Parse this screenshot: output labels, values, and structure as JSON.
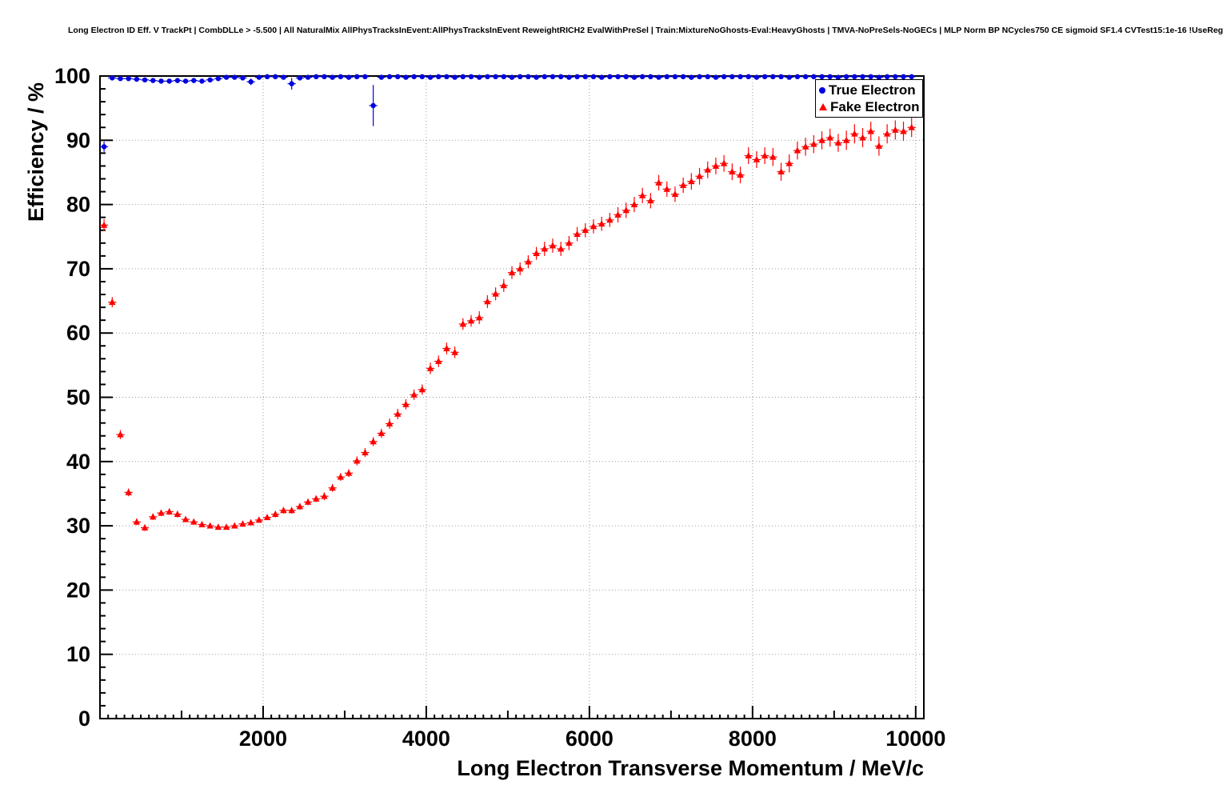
{
  "title": "Long Electron ID Eff. V TrackPt | CombDLLe > -5.500 | All NaturalMix AllPhysTracksInEvent:AllPhysTracksInEvent ReweightRICH2 EvalWithPreSel | Train:MixtureNoGhosts-Eval:HeavyGhosts | TMVA-NoPreSels-NoGECs | MLP Norm BP NCycles750 CE sigmoid SF1.4 CVTest15:1e-16 !UseReg",
  "axes": {
    "x_label": "Long Electron Transverse Momentum / MeV/c",
    "y_label": "Efficiency / %",
    "x_ticks": [
      2000,
      4000,
      6000,
      8000,
      10000
    ],
    "y_ticks": [
      0,
      10,
      20,
      30,
      40,
      50,
      60,
      70,
      80,
      90,
      100
    ]
  },
  "legend": {
    "items": [
      {
        "label": "True Electron",
        "marker": "circle",
        "color": "#0000e0"
      },
      {
        "label": "Fake Electron",
        "marker": "triangle",
        "color": "#ff0000"
      }
    ]
  },
  "colors": {
    "true_electron": "#0000e0",
    "fake_electron": "#ff0000",
    "grid": "#999999",
    "frame": "#000000",
    "background": "#ffffff"
  },
  "chart_data": {
    "type": "scatter",
    "title": "Long Electron ID Eff. V TrackPt",
    "xlabel": "Long Electron Transverse Momentum / MeV/c",
    "ylabel": "Efficiency / %",
    "xlim": [
      0,
      10100
    ],
    "ylim": [
      0,
      100
    ],
    "grid": true,
    "legend_position": "top-right",
    "series": [
      {
        "name": "True Electron",
        "marker": "circle",
        "color": "#0000e0",
        "points": [
          [
            50,
            89.0,
            0.8
          ],
          [
            150,
            99.7,
            0.2
          ],
          [
            250,
            99.6,
            0.2
          ],
          [
            350,
            99.6,
            0.2
          ],
          [
            450,
            99.5,
            0.2
          ],
          [
            550,
            99.4,
            0.2
          ],
          [
            650,
            99.3,
            0.2
          ],
          [
            750,
            99.2,
            0.2
          ],
          [
            850,
            99.2,
            0.2
          ],
          [
            950,
            99.3,
            0.2
          ],
          [
            1050,
            99.2,
            0.2
          ],
          [
            1150,
            99.3,
            0.2
          ],
          [
            1250,
            99.2,
            0.2
          ],
          [
            1350,
            99.4,
            0.2
          ],
          [
            1450,
            99.6,
            0.2
          ],
          [
            1550,
            99.8,
            0.1
          ],
          [
            1650,
            99.8,
            0.1
          ],
          [
            1750,
            99.7,
            0.2
          ],
          [
            1850,
            99.1,
            0.5
          ],
          [
            1950,
            99.8,
            0.1
          ],
          [
            2050,
            99.9,
            0.1
          ],
          [
            2150,
            99.9,
            0.1
          ],
          [
            2250,
            99.8,
            0.1
          ],
          [
            2350,
            98.8,
            0.9
          ],
          [
            2450,
            99.7,
            0.2
          ],
          [
            2550,
            99.8,
            0.1
          ],
          [
            2650,
            99.9,
            0.1
          ],
          [
            2750,
            99.9,
            0.1
          ],
          [
            2850,
            99.8,
            0.1
          ],
          [
            2950,
            99.9,
            0.1
          ],
          [
            3050,
            99.8,
            0.1
          ],
          [
            3150,
            99.9,
            0.1
          ],
          [
            3250,
            99.9,
            0.1
          ],
          [
            3350,
            95.4,
            3.2
          ],
          [
            3450,
            99.8,
            0.2
          ],
          [
            3550,
            99.9,
            0.1
          ],
          [
            3650,
            99.9,
            0.1
          ],
          [
            3750,
            99.8,
            0.1
          ],
          [
            3850,
            99.9,
            0.1
          ],
          [
            3950,
            99.9,
            0.1
          ],
          [
            4050,
            99.8,
            0.1
          ],
          [
            4150,
            99.9,
            0.1
          ],
          [
            4250,
            99.9,
            0.1
          ],
          [
            4350,
            99.8,
            0.1
          ],
          [
            4450,
            99.9,
            0.1
          ],
          [
            4550,
            99.9,
            0.1
          ],
          [
            4650,
            99.8,
            0.1
          ],
          [
            4750,
            99.9,
            0.1
          ],
          [
            4850,
            99.9,
            0.1
          ],
          [
            4950,
            99.9,
            0.1
          ],
          [
            5050,
            99.8,
            0.1
          ],
          [
            5150,
            99.9,
            0.1
          ],
          [
            5250,
            99.9,
            0.1
          ],
          [
            5350,
            99.8,
            0.1
          ],
          [
            5450,
            99.9,
            0.1
          ],
          [
            5550,
            99.9,
            0.1
          ],
          [
            5650,
            99.9,
            0.1
          ],
          [
            5750,
            99.8,
            0.1
          ],
          [
            5850,
            99.9,
            0.1
          ],
          [
            5950,
            99.9,
            0.1
          ],
          [
            6050,
            99.9,
            0.1
          ],
          [
            6150,
            99.8,
            0.1
          ],
          [
            6250,
            99.9,
            0.1
          ],
          [
            6350,
            99.9,
            0.1
          ],
          [
            6450,
            99.9,
            0.1
          ],
          [
            6550,
            99.8,
            0.1
          ],
          [
            6650,
            99.9,
            0.1
          ],
          [
            6750,
            99.9,
            0.1
          ],
          [
            6850,
            99.8,
            0.1
          ],
          [
            6950,
            99.9,
            0.1
          ],
          [
            7050,
            99.9,
            0.1
          ],
          [
            7150,
            99.9,
            0.1
          ],
          [
            7250,
            99.8,
            0.1
          ],
          [
            7350,
            99.9,
            0.1
          ],
          [
            7450,
            99.9,
            0.1
          ],
          [
            7550,
            99.8,
            0.1
          ],
          [
            7650,
            99.9,
            0.1
          ],
          [
            7750,
            99.9,
            0.1
          ],
          [
            7850,
            99.9,
            0.1
          ],
          [
            7950,
            99.9,
            0.1
          ],
          [
            8050,
            99.8,
            0.2
          ],
          [
            8150,
            99.9,
            0.1
          ],
          [
            8250,
            99.9,
            0.1
          ],
          [
            8350,
            99.9,
            0.2
          ],
          [
            8450,
            99.8,
            0.2
          ],
          [
            8550,
            99.9,
            0.1
          ],
          [
            8650,
            99.9,
            0.2
          ],
          [
            8750,
            99.9,
            0.2
          ],
          [
            8850,
            99.9,
            0.2
          ],
          [
            8950,
            99.9,
            0.2
          ],
          [
            9050,
            99.8,
            0.2
          ],
          [
            9150,
            99.9,
            0.2
          ],
          [
            9250,
            99.9,
            0.2
          ],
          [
            9350,
            99.9,
            0.2
          ],
          [
            9450,
            99.9,
            0.2
          ],
          [
            9550,
            99.8,
            0.2
          ],
          [
            9650,
            99.9,
            0.2
          ],
          [
            9750,
            99.9,
            0.2
          ],
          [
            9850,
            99.9,
            0.2
          ],
          [
            9950,
            99.9,
            0.2
          ]
        ]
      },
      {
        "name": "Fake Electron",
        "marker": "triangle",
        "color": "#ff0000",
        "points": [
          [
            50,
            76.8,
            0.9
          ],
          [
            150,
            64.8,
            0.8
          ],
          [
            250,
            44.2,
            0.7
          ],
          [
            350,
            35.2,
            0.6
          ],
          [
            450,
            30.6,
            0.5
          ],
          [
            550,
            29.7,
            0.5
          ],
          [
            650,
            31.4,
            0.5
          ],
          [
            750,
            32.0,
            0.5
          ],
          [
            850,
            32.2,
            0.5
          ],
          [
            950,
            31.8,
            0.5
          ],
          [
            1050,
            31.0,
            0.4
          ],
          [
            1150,
            30.6,
            0.4
          ],
          [
            1250,
            30.2,
            0.4
          ],
          [
            1350,
            30.0,
            0.4
          ],
          [
            1450,
            29.8,
            0.4
          ],
          [
            1550,
            29.8,
            0.4
          ],
          [
            1650,
            30.0,
            0.4
          ],
          [
            1750,
            30.3,
            0.4
          ],
          [
            1850,
            30.5,
            0.4
          ],
          [
            1950,
            30.9,
            0.4
          ],
          [
            2050,
            31.3,
            0.4
          ],
          [
            2150,
            31.8,
            0.5
          ],
          [
            2250,
            32.4,
            0.5
          ],
          [
            2350,
            32.4,
            0.5
          ],
          [
            2450,
            33.0,
            0.5
          ],
          [
            2550,
            33.7,
            0.5
          ],
          [
            2650,
            34.2,
            0.5
          ],
          [
            2750,
            34.6,
            0.6
          ],
          [
            2850,
            35.9,
            0.6
          ],
          [
            2950,
            37.6,
            0.6
          ],
          [
            3050,
            38.2,
            0.6
          ],
          [
            3150,
            40.1,
            0.7
          ],
          [
            3250,
            41.4,
            0.7
          ],
          [
            3350,
            43.1,
            0.7
          ],
          [
            3450,
            44.4,
            0.7
          ],
          [
            3550,
            45.9,
            0.8
          ],
          [
            3650,
            47.4,
            0.8
          ],
          [
            3750,
            48.9,
            0.8
          ],
          [
            3850,
            50.4,
            0.8
          ],
          [
            3950,
            51.2,
            0.8
          ],
          [
            4050,
            54.5,
            0.9
          ],
          [
            4150,
            55.6,
            0.9
          ],
          [
            4250,
            57.6,
            0.9
          ],
          [
            4350,
            57.0,
            0.9
          ],
          [
            4450,
            61.4,
            0.9
          ],
          [
            4550,
            61.9,
            0.9
          ],
          [
            4650,
            62.4,
            1.0
          ],
          [
            4750,
            64.9,
            1.0
          ],
          [
            4850,
            66.1,
            1.0
          ],
          [
            4950,
            67.4,
            1.0
          ],
          [
            5050,
            69.4,
            1.0
          ],
          [
            5150,
            70.0,
            1.0
          ],
          [
            5250,
            71.1,
            1.0
          ],
          [
            5350,
            72.4,
            1.0
          ],
          [
            5450,
            73.1,
            1.1
          ],
          [
            5550,
            73.6,
            1.1
          ],
          [
            5650,
            73.1,
            1.1
          ],
          [
            5750,
            74.0,
            1.1
          ],
          [
            5850,
            75.4,
            1.1
          ],
          [
            5950,
            76.0,
            1.1
          ],
          [
            6050,
            76.6,
            1.1
          ],
          [
            6150,
            77.0,
            1.1
          ],
          [
            6250,
            77.6,
            1.1
          ],
          [
            6350,
            78.4,
            1.2
          ],
          [
            6450,
            79.1,
            1.2
          ],
          [
            6550,
            80.0,
            1.2
          ],
          [
            6650,
            81.4,
            1.2
          ],
          [
            6750,
            80.6,
            1.2
          ],
          [
            6850,
            83.4,
            1.2
          ],
          [
            6950,
            82.4,
            1.2
          ],
          [
            7050,
            81.6,
            1.2
          ],
          [
            7150,
            83.0,
            1.2
          ],
          [
            7250,
            83.6,
            1.3
          ],
          [
            7350,
            84.4,
            1.3
          ],
          [
            7450,
            85.4,
            1.3
          ],
          [
            7550,
            86.0,
            1.3
          ],
          [
            7650,
            86.4,
            1.3
          ],
          [
            7750,
            85.1,
            1.3
          ],
          [
            7850,
            84.6,
            1.3
          ],
          [
            7950,
            87.6,
            1.3
          ],
          [
            8050,
            87.0,
            1.3
          ],
          [
            8150,
            87.6,
            1.3
          ],
          [
            8250,
            87.4,
            1.4
          ],
          [
            8350,
            85.1,
            1.4
          ],
          [
            8450,
            86.4,
            1.4
          ],
          [
            8550,
            88.4,
            1.4
          ],
          [
            8650,
            89.0,
            1.4
          ],
          [
            8750,
            89.4,
            1.4
          ],
          [
            8850,
            90.0,
            1.4
          ],
          [
            8950,
            90.4,
            1.4
          ],
          [
            9050,
            89.6,
            1.4
          ],
          [
            9150,
            90.0,
            1.5
          ],
          [
            9250,
            91.0,
            1.5
          ],
          [
            9350,
            90.4,
            1.5
          ],
          [
            9450,
            91.4,
            1.5
          ],
          [
            9550,
            89.1,
            1.5
          ],
          [
            9650,
            91.0,
            1.5
          ],
          [
            9750,
            91.6,
            1.5
          ],
          [
            9850,
            91.4,
            1.5
          ],
          [
            9950,
            92.0,
            1.5
          ]
        ]
      }
    ]
  }
}
